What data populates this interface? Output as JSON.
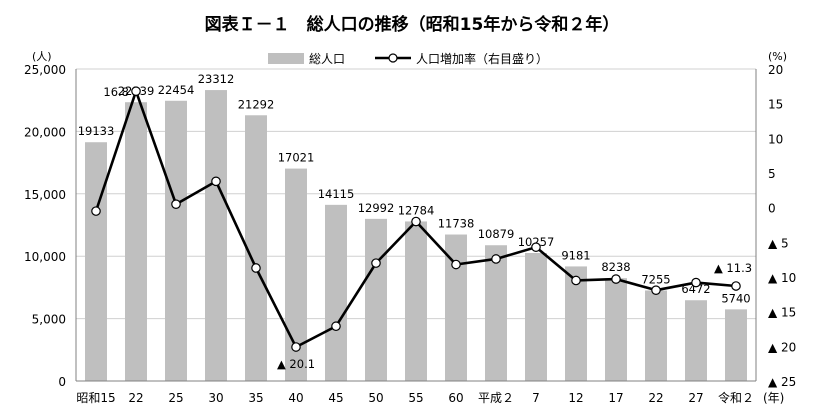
{
  "chart_data": {
    "type": "bar+line",
    "title": "図表Ｉ－１　総人口の推移（昭和15年から令和２年）",
    "categories": [
      "昭和15",
      "22",
      "25",
      "30",
      "35",
      "40",
      "45",
      "50",
      "55",
      "60",
      "平成２",
      "7",
      "12",
      "17",
      "22",
      "27",
      "令和２"
    ],
    "x_unit": "(年)",
    "legend": {
      "placement": "top-center",
      "bar_label": "総人口",
      "line_label": "人口増加率（右目盛り）"
    },
    "left_axis": {
      "unit": "(人)",
      "ylim": [
        0,
        25000
      ],
      "ticks": [
        {
          "value": 0,
          "label": "0"
        },
        {
          "value": 5000,
          "label": "5,000"
        },
        {
          "value": 10000,
          "label": "10,000"
        },
        {
          "value": 15000,
          "label": "15,000"
        },
        {
          "value": 20000,
          "label": "20,000"
        },
        {
          "value": 25000,
          "label": "25,000"
        }
      ]
    },
    "right_axis": {
      "unit": "(%)",
      "ylim": [
        -25,
        20
      ],
      "ticks": [
        {
          "value": 20,
          "label": "20"
        },
        {
          "value": 15,
          "label": "15"
        },
        {
          "value": 10,
          "label": "10"
        },
        {
          "value": 5,
          "label": "5"
        },
        {
          "value": 0,
          "label": "0"
        },
        {
          "value": -5,
          "label": "▲ 5"
        },
        {
          "value": -10,
          "label": "▲ 10"
        },
        {
          "value": -15,
          "label": "▲ 15"
        },
        {
          "value": -20,
          "label": "▲ 20"
        },
        {
          "value": -25,
          "label": "▲ 25"
        }
      ]
    },
    "series": [
      {
        "name": "総人口",
        "type": "bar",
        "axis": "left",
        "color": "#bfbfbf",
        "values": [
          19133,
          22339,
          22454,
          23312,
          21292,
          17021,
          14115,
          12992,
          12784,
          11738,
          10879,
          10257,
          9181,
          8238,
          7255,
          6472,
          5740
        ],
        "labels": [
          "19133",
          "22339",
          "22454",
          "23312",
          "21292",
          "17021",
          "14115",
          "12992",
          "12784",
          "11738",
          "10879",
          "10257",
          "9181",
          "8238",
          "7255",
          "6472",
          "5740"
        ]
      },
      {
        "name": "人口増加率（右目盛り）",
        "type": "line",
        "axis": "right",
        "color": "#000000",
        "values": [
          -0.5,
          16.8,
          0.5,
          3.8,
          -8.7,
          -20.1,
          -17.1,
          -8.0,
          -2.0,
          -8.2,
          -7.4,
          -5.7,
          -10.5,
          -10.3,
          -11.9,
          -10.8,
          -11.3
        ]
      }
    ],
    "annotations": [
      {
        "series": 1,
        "index": 1,
        "text": "16.8"
      },
      {
        "series": 1,
        "index": 5,
        "text": "▲ 20.1"
      },
      {
        "series": 1,
        "index": 16,
        "text": "▲ 11.3"
      }
    ],
    "grid": true
  }
}
